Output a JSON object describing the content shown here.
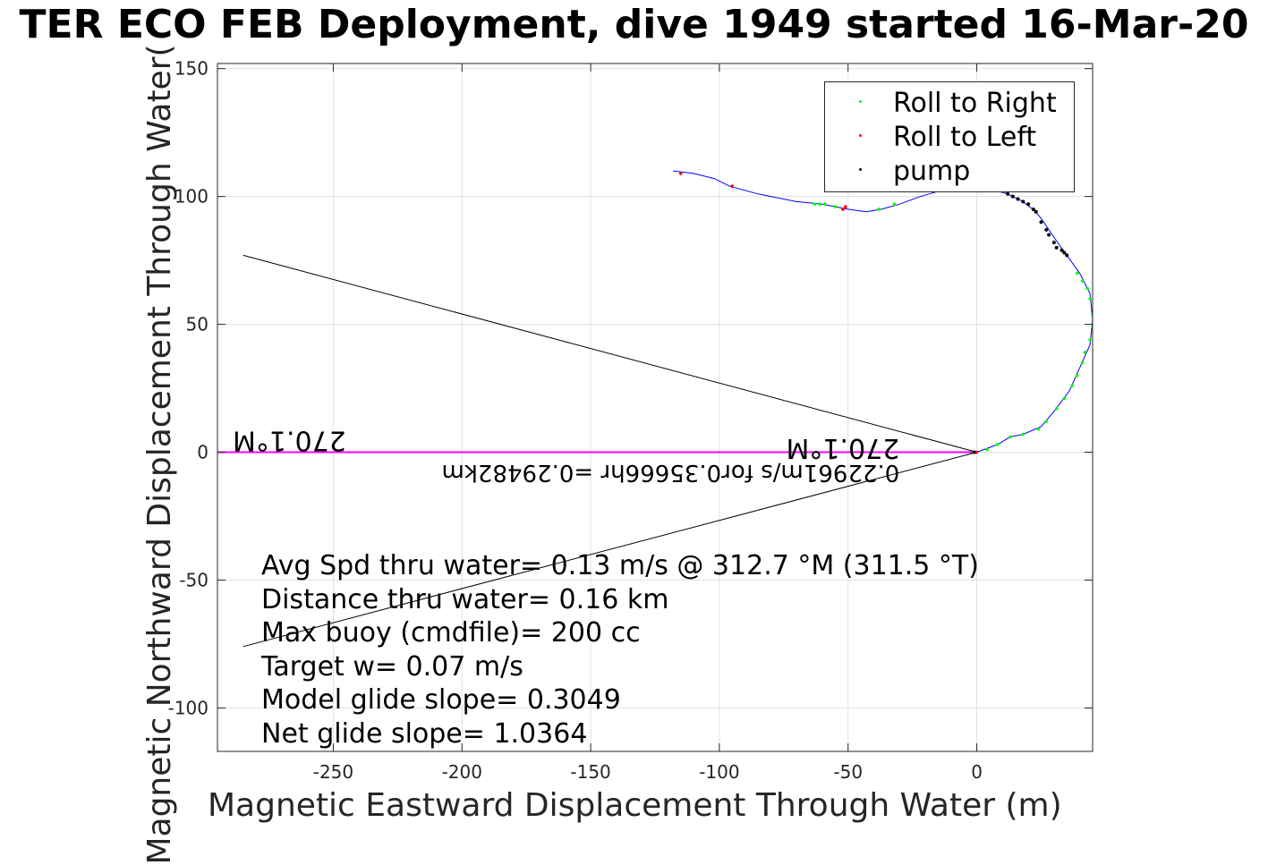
{
  "chart_data": {
    "type": "line",
    "title": "TER ECO FEB Deployment, dive 1949 started 16-Mar-20",
    "xlabel": "Magnetic Eastward Displacement Through Water (m)",
    "ylabel": "Magnetic Northward Displacement Through Water(",
    "xlim": [
      -295,
      45
    ],
    "ylim": [
      -117,
      152
    ],
    "xticks": [
      -250,
      -200,
      -150,
      -100,
      -50,
      0
    ],
    "yticks": [
      -100,
      -50,
      0,
      50,
      100,
      150
    ],
    "grid": true,
    "legend": {
      "placement": "top-right",
      "entries": [
        {
          "name": "Roll to Right",
          "color": "#00ff00"
        },
        {
          "name": "Roll to Left",
          "color": "#ff0000"
        },
        {
          "name": "pump",
          "color": "#000000"
        }
      ]
    },
    "track": {
      "color": "#0000ff",
      "points": [
        [
          0,
          0
        ],
        [
          8,
          3
        ],
        [
          13,
          6
        ],
        [
          18,
          7
        ],
        [
          25,
          10
        ],
        [
          30,
          16
        ],
        [
          36,
          24
        ],
        [
          40,
          33
        ],
        [
          44,
          42
        ],
        [
          45,
          52
        ],
        [
          44,
          62
        ],
        [
          40,
          70
        ],
        [
          35,
          77
        ],
        [
          30,
          84
        ],
        [
          26,
          90
        ],
        [
          23,
          94
        ],
        [
          18,
          98
        ],
        [
          12,
          101
        ],
        [
          5,
          103
        ],
        [
          -8,
          104
        ],
        [
          -22,
          100
        ],
        [
          -30,
          97
        ],
        [
          -37,
          95
        ],
        [
          -43,
          94
        ],
        [
          -50,
          95
        ],
        [
          -60,
          97
        ],
        [
          -70,
          98
        ],
        [
          -85,
          101
        ],
        [
          -96,
          104
        ],
        [
          -102,
          107
        ],
        [
          -110,
          109
        ],
        [
          -118,
          110
        ]
      ],
      "roll_right": [
        [
          4,
          1
        ],
        [
          8,
          3
        ],
        [
          13,
          6
        ],
        [
          18,
          7
        ],
        [
          24,
          9
        ],
        [
          27,
          12
        ],
        [
          31,
          17
        ],
        [
          34,
          21
        ],
        [
          37,
          26
        ],
        [
          39,
          30
        ],
        [
          41,
          35
        ],
        [
          42,
          39
        ],
        [
          44,
          44
        ],
        [
          45,
          49
        ],
        [
          45,
          54
        ],
        [
          44,
          60
        ],
        [
          43,
          64
        ],
        [
          41,
          67
        ],
        [
          39,
          70
        ],
        [
          -32,
          97
        ],
        [
          -38,
          95
        ],
        [
          -55,
          96
        ],
        [
          -59,
          97
        ],
        [
          -61,
          97
        ],
        [
          -63,
          97
        ]
      ],
      "roll_left": [
        [
          0,
          0
        ],
        [
          -51,
          96
        ],
        [
          -52,
          95
        ],
        [
          -95,
          104
        ],
        [
          -115,
          109
        ]
      ],
      "pump": [
        [
          -1,
          0
        ],
        [
          9,
          104
        ],
        [
          12,
          101
        ],
        [
          14,
          100
        ],
        [
          16,
          99
        ],
        [
          18,
          98
        ],
        [
          20,
          97
        ],
        [
          22,
          95
        ],
        [
          23,
          94
        ],
        [
          25,
          90
        ],
        [
          27,
          87
        ],
        [
          28,
          85
        ],
        [
          30,
          82
        ],
        [
          31,
          80
        ],
        [
          33,
          79
        ],
        [
          34,
          78
        ],
        [
          35,
          77
        ]
      ]
    },
    "current": {
      "color": "#ff00ff",
      "points": [
        [
          -295,
          0
        ],
        [
          0,
          0
        ]
      ]
    },
    "wedge_lines": [
      {
        "points": [
          [
            0,
            0
          ],
          [
            -285,
            77
          ]
        ]
      },
      {
        "points": [
          [
            0,
            0
          ],
          [
            -285,
            -76
          ]
        ]
      }
    ],
    "annotations": [
      {
        "text": "270.1°M",
        "x": -30,
        "y": 5,
        "flipped": true
      },
      {
        "text": "0.22961m/s for0.35666hr =0.29482km",
        "x": -30,
        "y": -5,
        "flipped": true
      },
      {
        "text": "270.1°M",
        "x": -245,
        "y": 8,
        "flipped": true
      }
    ],
    "stats": [
      "Avg Spd thru water=  0.13 m/s @ 312.7 °M (311.5 °T)",
      "Distance thru water=  0.16 km",
      "Max buoy (cmdfile)= 200 cc",
      "Target w= 0.07 m/s",
      "Model glide slope= 0.3049",
      "Net glide slope= 1.0364"
    ]
  }
}
